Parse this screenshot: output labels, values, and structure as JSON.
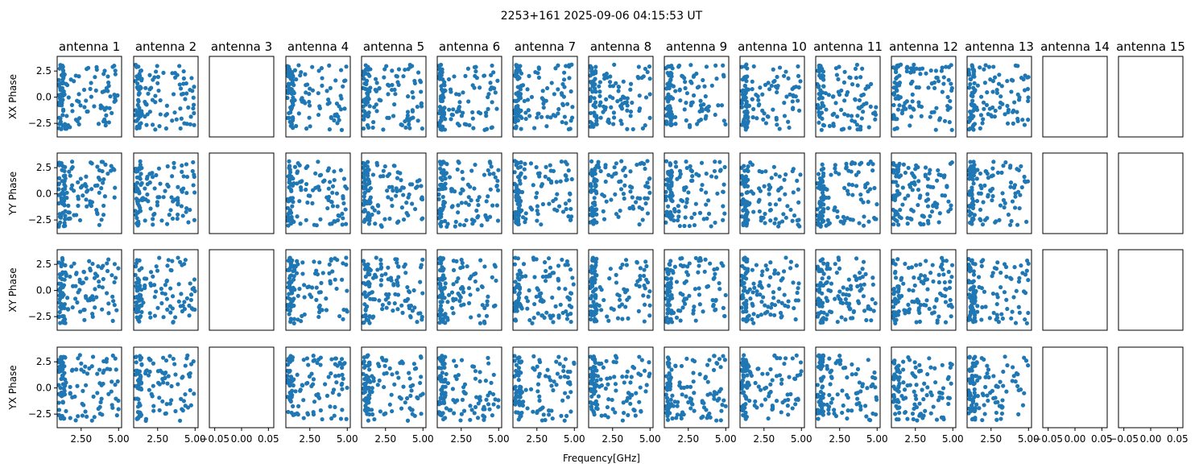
{
  "chart_data": {
    "type": "scatter",
    "title": "2253+161 2025-09-06 04:15:53 UT",
    "xlabel": "Frequency[GHz]",
    "row_labels": [
      "XX Phase",
      "YY Phase",
      "XY Phase",
      "YX Phase"
    ],
    "panel_titles": [
      "antenna 1",
      "antenna 2",
      "antenna 3",
      "antenna 4",
      "antenna 5",
      "antenna 6",
      "antenna 7",
      "antenna 8",
      "antenna 9",
      "antenna 10",
      "antenna 11",
      "antenna 12",
      "antenna 13",
      "antenna 14",
      "antenna 15"
    ],
    "xlim": [
      0.9,
      5.2
    ],
    "ylim": [
      -3.8,
      3.9
    ],
    "yticks": [
      2.5,
      0.0,
      -2.5
    ],
    "ytick_labels": [
      "2.5",
      "0.0",
      "−2.5"
    ],
    "xticks": [
      2.5,
      5.0
    ],
    "xtick_labels": [
      "2.50",
      "5.00"
    ],
    "empty_xlim": [
      -0.06,
      0.06
    ],
    "empty_xticks": [
      -0.05,
      0.0,
      0.05
    ],
    "empty_xtick_labels": [
      "−0.05",
      "0.00",
      "0.05"
    ],
    "empty_antennas": [
      3,
      14,
      15
    ],
    "empty_panels": [
      [
        0,
        2
      ],
      [
        1,
        2
      ],
      [
        2,
        2
      ],
      [
        3,
        2
      ],
      [
        0,
        13
      ],
      [
        1,
        13
      ],
      [
        2,
        13
      ],
      [
        3,
        13
      ],
      [
        0,
        14
      ],
      [
        1,
        14
      ],
      [
        2,
        14
      ],
      [
        3,
        14
      ]
    ],
    "points_per_panel": 120,
    "frequency_range_ghz": [
      1.0,
      5.0
    ],
    "phase_range_rad": [
      -3.1416,
      3.1416
    ],
    "series_color": "#1f77b4",
    "grid": false,
    "legend": "none"
  }
}
